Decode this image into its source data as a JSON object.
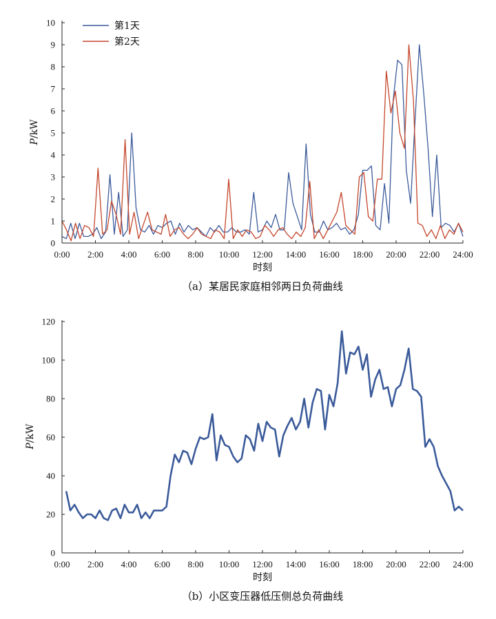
{
  "chart_data": [
    {
      "type": "line",
      "caption": "（a）某居民家庭相邻两日负荷曲线",
      "xlabel": "时刻",
      "ylabel_italic": "P",
      "ylabel_unit": "/kW",
      "ylim": [
        0,
        10
      ],
      "xlim_hours": [
        0,
        24
      ],
      "x_ticks": [
        "0:00",
        "2:00",
        "4:00",
        "6:00",
        "8:00",
        "10:00",
        "12:00",
        "14:00",
        "16:00",
        "18:00",
        "20:00",
        "22:00",
        "24:00"
      ],
      "y_ticks": [
        "0",
        "1",
        "2",
        "3",
        "4",
        "5",
        "6",
        "7",
        "8",
        "9",
        "10"
      ],
      "legend": "top-left",
      "series": [
        {
          "name": "第1天",
          "color": "#3a5a9a",
          "values": [
            0.3,
            0.2,
            0.9,
            0.2,
            0.9,
            0.3,
            0.3,
            0.4,
            0.7,
            0.2,
            0.5,
            3.1,
            0.4,
            2.3,
            0.3,
            0.6,
            5.0,
            1.6,
            0.6,
            0.5,
            0.8,
            0.4,
            0.8,
            0.7,
            0.9,
            1.0,
            0.4,
            0.9,
            0.5,
            0.8,
            0.6,
            0.7,
            0.5,
            0.3,
            0.7,
            0.5,
            0.8,
            0.5,
            0.5,
            0.7,
            0.5,
            0.5,
            0.6,
            0.4,
            2.3,
            0.5,
            0.6,
            1.0,
            0.7,
            1.3,
            0.6,
            0.6,
            3.2,
            1.8,
            1.2,
            0.6,
            4.5,
            1.3,
            0.5,
            0.5,
            1.0,
            0.6,
            0.7,
            0.9,
            0.6,
            0.7,
            0.4,
            0.6,
            1.3,
            3.3,
            3.3,
            3.5,
            0.8,
            0.6,
            2.7,
            0.9,
            6.5,
            8.3,
            8.1,
            3.3,
            1.8,
            5.5,
            9.0,
            6.8,
            4.3,
            1.2,
            4.0,
            0.7,
            0.9,
            0.8,
            0.5,
            0.9,
            0.3
          ]
        },
        {
          "name": "第2天",
          "color": "#c4452a",
          "values": [
            1.0,
            0.6,
            0.1,
            0.9,
            0.2,
            0.8,
            0.7,
            0.3,
            3.4,
            0.4,
            0.6,
            1.9,
            1.3,
            0.4,
            4.7,
            0.4,
            1.4,
            0.2,
            0.8,
            1.4,
            0.6,
            0.5,
            0.4,
            1.3,
            0.3,
            0.6,
            0.7,
            0.4,
            0.2,
            0.4,
            0.7,
            0.4,
            0.3,
            0.2,
            0.6,
            0.5,
            0.2,
            2.9,
            0.2,
            0.6,
            0.3,
            0.6,
            0.5,
            0.2,
            0.3,
            0.8,
            0.6,
            0.3,
            0.6,
            0.7,
            0.4,
            0.2,
            0.5,
            0.3,
            0.7,
            2.8,
            0.2,
            0.6,
            0.2,
            0.6,
            1.0,
            1.4,
            2.3,
            0.8,
            0.6,
            0.4,
            3.0,
            3.2,
            1.2,
            1.0,
            2.9,
            2.9,
            7.8,
            5.9,
            6.9,
            5.0,
            4.3,
            9.0,
            6.5,
            0.9,
            0.8,
            0.3,
            0.6,
            0.2,
            0.8,
            0.2,
            0.6,
            0.4,
            0.9,
            0.5
          ]
        }
      ]
    },
    {
      "type": "line",
      "caption": "（b）小区变压器低压侧总负荷曲线",
      "xlabel": "时刻",
      "ylabel_italic": "P",
      "ylabel_unit": "/kW",
      "ylim": [
        0,
        120
      ],
      "xlim_hours": [
        0,
        24
      ],
      "x_ticks": [
        "0:00",
        "2:00",
        "4:00",
        "6:00",
        "8:00",
        "10:00",
        "12:00",
        "14:00",
        "16:00",
        "18:00",
        "20:00",
        "22:00",
        "24:00"
      ],
      "y_ticks": [
        "0",
        "20",
        "40",
        "60",
        "80",
        "100",
        "120"
      ],
      "series": [
        {
          "color": "#3a5a9a",
          "x_start_hour": 0.25,
          "x_step_hour": 0.25,
          "values": [
            32,
            22,
            25,
            21,
            18,
            20,
            20,
            18,
            22,
            18,
            17,
            22,
            23,
            18,
            25,
            21,
            21,
            25,
            18,
            21,
            18,
            22,
            22,
            22,
            24,
            40,
            51,
            47,
            53,
            52,
            46,
            54,
            60,
            59,
            60,
            72,
            48,
            61,
            56,
            55,
            50,
            47,
            49,
            61,
            59,
            53,
            67,
            58,
            68,
            65,
            64,
            50,
            61,
            66,
            70,
            64,
            68,
            80,
            65,
            78,
            85,
            84,
            64,
            82,
            76,
            88,
            115,
            93,
            104,
            103,
            107,
            95,
            103,
            81,
            90,
            95,
            85,
            86,
            76,
            85,
            87,
            95,
            106,
            85,
            84,
            81,
            55,
            59,
            55,
            45,
            40,
            36,
            32,
            22,
            24,
            22
          ]
        }
      ]
    }
  ]
}
